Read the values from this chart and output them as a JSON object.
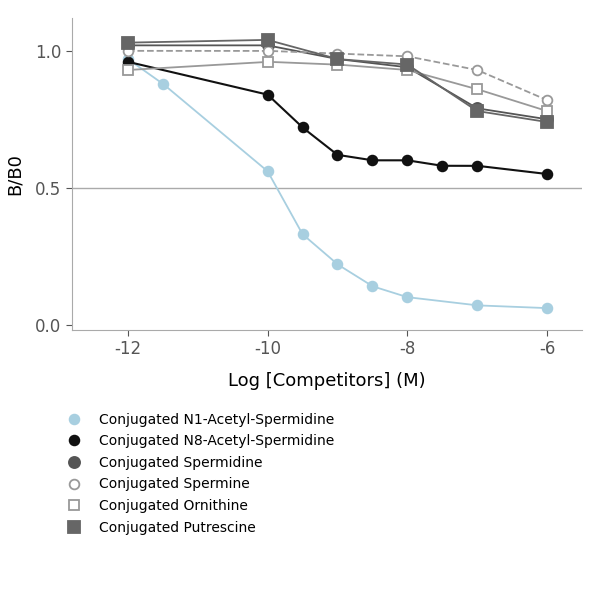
{
  "xlabel": "Log [Competitors] (M)",
  "ylabel": "B/B0",
  "xlim": [
    -12.8,
    -5.5
  ],
  "ylim": [
    -0.02,
    1.12
  ],
  "xticks": [
    -12,
    -10,
    -8,
    -6
  ],
  "yticks": [
    0.0,
    0.5,
    1.0
  ],
  "hline_y": 0.5,
  "series": [
    {
      "name": "Conjugated N1-Acetyl-Spermidine",
      "color": "#a8cfe0",
      "linestyle": "-",
      "marker": "o",
      "markersize": 7,
      "fillstyle": "full",
      "linewidth": 1.3,
      "x": [
        -12,
        -11.5,
        -10,
        -9.5,
        -9,
        -8.5,
        -8,
        -7,
        -6
      ],
      "y": [
        0.97,
        0.88,
        0.56,
        0.33,
        0.22,
        0.14,
        0.1,
        0.07,
        0.06
      ]
    },
    {
      "name": "Conjugated N8-Acetyl-Spermidine",
      "color": "#111111",
      "linestyle": "-",
      "marker": "o",
      "markersize": 7,
      "fillstyle": "full",
      "linewidth": 1.5,
      "x": [
        -12,
        -10,
        -9.5,
        -9,
        -8.5,
        -8,
        -7.5,
        -7,
        -6
      ],
      "y": [
        0.96,
        0.84,
        0.72,
        0.62,
        0.6,
        0.6,
        0.58,
        0.58,
        0.55
      ]
    },
    {
      "name": "Conjugated Spermidine",
      "color": "#555555",
      "linestyle": "-",
      "marker": "o",
      "markersize": 8,
      "fillstyle": "full",
      "linewidth": 1.3,
      "x": [
        -12,
        -10,
        -9,
        -8,
        -7,
        -6
      ],
      "y": [
        1.02,
        1.02,
        0.97,
        0.94,
        0.79,
        0.75
      ]
    },
    {
      "name": "Conjugated Spermine",
      "color": "#999999",
      "linestyle": "--",
      "marker": "o",
      "markersize": 7,
      "fillstyle": "none",
      "linewidth": 1.3,
      "x": [
        -12,
        -10,
        -9,
        -8,
        -7,
        -6
      ],
      "y": [
        1.0,
        1.0,
        0.99,
        0.98,
        0.93,
        0.82
      ]
    },
    {
      "name": "Conjugated Ornithine",
      "color": "#999999",
      "linestyle": "-",
      "marker": "s",
      "markersize": 7,
      "fillstyle": "none",
      "linewidth": 1.3,
      "x": [
        -12,
        -10,
        -9,
        -8,
        -7,
        -6
      ],
      "y": [
        0.93,
        0.96,
        0.95,
        0.93,
        0.86,
        0.78
      ]
    },
    {
      "name": "Conjugated Putrescine",
      "color": "#666666",
      "linestyle": "-",
      "marker": "s",
      "markersize": 9,
      "fillstyle": "full",
      "linewidth": 1.3,
      "x": [
        -12,
        -10,
        -9,
        -8,
        -7,
        -6
      ],
      "y": [
        1.03,
        1.04,
        0.97,
        0.95,
        0.78,
        0.74
      ]
    }
  ],
  "background_color": "#ffffff",
  "figsize": [
    6.0,
    6.0
  ],
  "dpi": 100
}
